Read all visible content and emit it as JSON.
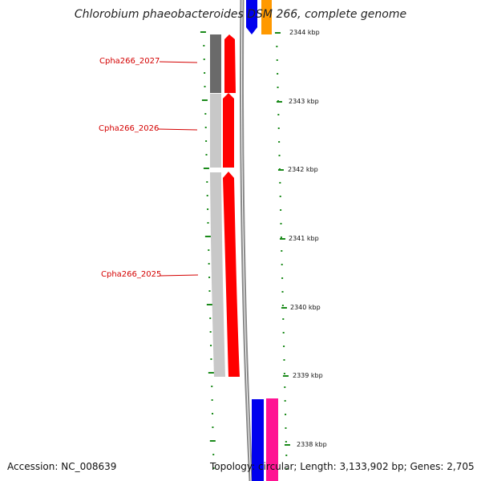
{
  "title": "Chlorobium phaeobacteroides DSM 266, complete genome",
  "footer": {
    "accession": "Accession: NC_008639",
    "summary": "Topology: circular; Length: 3,133,902 bp; Genes: 2,705"
  },
  "gene_labels": [
    {
      "text": "Cpha266_2027"
    },
    {
      "text": "Cpha266_2026"
    },
    {
      "text": "Cpha266_2025"
    }
  ],
  "ticks": [
    {
      "label": "2344 kbp"
    },
    {
      "label": "2343 kbp"
    },
    {
      "label": "2342 kbp"
    },
    {
      "label": "2341 kbp"
    },
    {
      "label": "2340 kbp"
    },
    {
      "label": "2339 kbp"
    },
    {
      "label": "2338 kbp"
    }
  ],
  "colors": {
    "gene_forward": "#ff0000",
    "gene_bar_dark": "#6a6a6a",
    "gene_bar_light": "#c8c8c8",
    "backbone": "#8a8a8a",
    "tick_green": "#1a8a1a",
    "blue_gene": "#0000ee",
    "orange_gene": "#ff9900",
    "pink_gene": "#ff1493",
    "label_red": "#d40000"
  }
}
